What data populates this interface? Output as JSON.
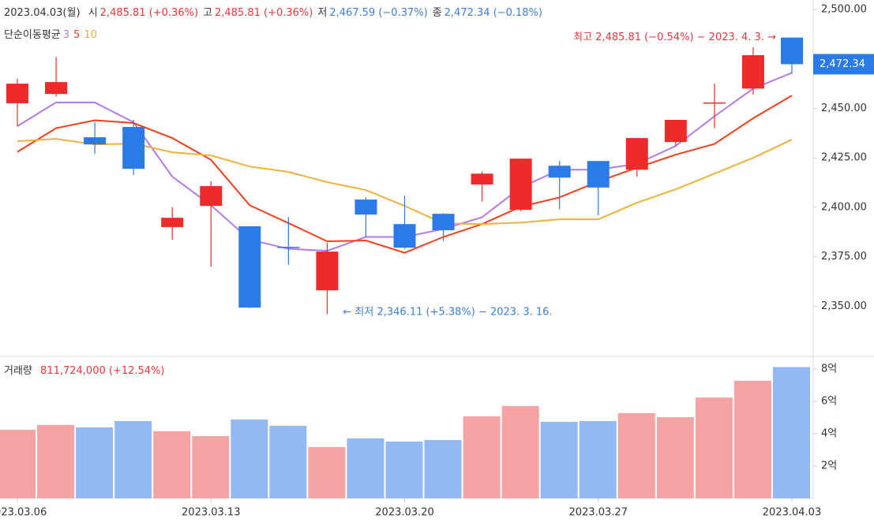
{
  "header": {
    "date": "2023.04.03(월)",
    "items": [
      {
        "label": "시",
        "value": "2,485.81 (+0.36%)",
        "color": "#e8383b"
      },
      {
        "label": "고",
        "value": "2,485.81 (+0.36%)",
        "color": "#e8383b"
      },
      {
        "label": "저",
        "value": "2,467.59 (−0.37%)",
        "color": "#3d7fdc"
      },
      {
        "label": "종",
        "value": "2,472.34 (−0.18%)",
        "color": "#3d7fdc"
      }
    ]
  },
  "chart_data": [
    {
      "type": "candlestick",
      "ma_title": "단순이동평균",
      "categories": [
        "2023.03.06",
        null,
        null,
        null,
        null,
        "2023.03.13",
        null,
        null,
        null,
        null,
        "2023.03.20",
        null,
        null,
        null,
        null,
        "2023.03.27",
        null,
        null,
        null,
        null,
        "2023.04.03"
      ],
      "open": [
        2452.6,
        2457.3,
        2435.4,
        2440.6,
        2390.0,
        2400.7,
        2390.4,
        2380.0,
        2358.0,
        2403.9,
        2391.5,
        2396.7,
        2411.5,
        2398.7,
        2421.0,
        2423.4,
        2419.0,
        2433.0,
        2452.6,
        2460.0,
        2485.81
      ],
      "high": [
        2464.9,
        2476.0,
        2443.0,
        2444.2,
        2400.0,
        2413.1,
        2390.4,
        2395.0,
        2382.0,
        2405.0,
        2406.0,
        2397.0,
        2418.0,
        2424.6,
        2423.4,
        2423.4,
        2435.0,
        2444.2,
        2462.5,
        2481.0,
        2485.81
      ],
      "low": [
        2441.0,
        2456.0,
        2427.0,
        2416.3,
        2383.6,
        2370.0,
        2349.0,
        2371.0,
        2346.11,
        2385.0,
        2379.0,
        2383.0,
        2403.0,
        2398.0,
        2399.0,
        2396.0,
        2415.5,
        2431.0,
        2440.0,
        2457.0,
        2467.59
      ],
      "close": [
        2462.5,
        2463.3,
        2431.8,
        2419.5,
        2394.7,
        2410.7,
        2349.3,
        2379.6,
        2377.6,
        2396.3,
        2379.6,
        2388.4,
        2417.0,
        2424.6,
        2415.0,
        2410.0,
        2435.0,
        2444.2,
        2453.0,
        2476.9,
        2472.34
      ],
      "up_color": "#ee2b2b",
      "down_color": "#2a7ae8",
      "series": [
        {
          "name": "3",
          "color": "#b57be8",
          "values": [
            2441,
            2453,
            2453,
            2443,
            2415.5,
            2401,
            2383.6,
            2379,
            2378,
            2385,
            2385,
            2389,
            2395,
            2410,
            2419,
            2419,
            2422,
            2431,
            2446,
            2460,
            2468
          ]
        },
        {
          "name": "5",
          "color": "#f0401c",
          "values": [
            2428,
            2440,
            2444,
            2442.6,
            2435,
            2424,
            2401,
            2392,
            2382.8,
            2383.2,
            2377,
            2385,
            2391.5,
            2400.3,
            2405,
            2413,
            2420,
            2426.6,
            2432,
            2445,
            2456.5
          ]
        },
        {
          "name": "10",
          "color": "#efb23c",
          "values": [
            2433.4,
            2434.6,
            2431.8,
            2432.2,
            2427.8,
            2426.2,
            2420.6,
            2417.9,
            2412.7,
            2408.7,
            2400.7,
            2391.9,
            2391.5,
            2392.3,
            2393.9,
            2393.9,
            2402.3,
            2409.1,
            2417,
            2425,
            2434.2
          ]
        }
      ],
      "ylim": [
        2325.4,
        2504.8
      ],
      "yticks": [
        {
          "value": 2350,
          "label": "2,350.00"
        },
        {
          "value": 2375,
          "label": "2,375.00"
        },
        {
          "value": 2400,
          "label": "2,400.00"
        },
        {
          "value": 2425,
          "label": "2,425.00"
        },
        {
          "value": 2450,
          "label": "2,450.00"
        },
        {
          "value": 2500,
          "label": "2,500.00"
        }
      ],
      "last_price_label": "2,472.34",
      "annotations": {
        "high": "최고 2,485.81 (−0.54%) − 2023. 4. 3.  →",
        "low": "←  최저 2,346.11 (+5.38%) − 2023. 3. 16."
      }
    },
    {
      "type": "bar",
      "title": "거래량",
      "subtitle": "811,724,000 (+12.54%)",
      "values": [
        4.24,
        4.54,
        4.39,
        4.78,
        4.15,
        3.85,
        4.88,
        4.49,
        3.17,
        3.71,
        3.51,
        3.61,
        5.07,
        5.71,
        4.73,
        4.78,
        5.27,
        5.02,
        6.24,
        7.27,
        8.12
      ],
      "up_color": "#f6a3a3",
      "down_color": "#93b9f2",
      "ylim": [
        0,
        8.78
      ],
      "yticks": [
        {
          "value": 2,
          "label": "2억"
        },
        {
          "value": 4,
          "label": "4억"
        },
        {
          "value": 6,
          "label": "6억"
        },
        {
          "value": 8,
          "label": "8억"
        }
      ]
    }
  ]
}
